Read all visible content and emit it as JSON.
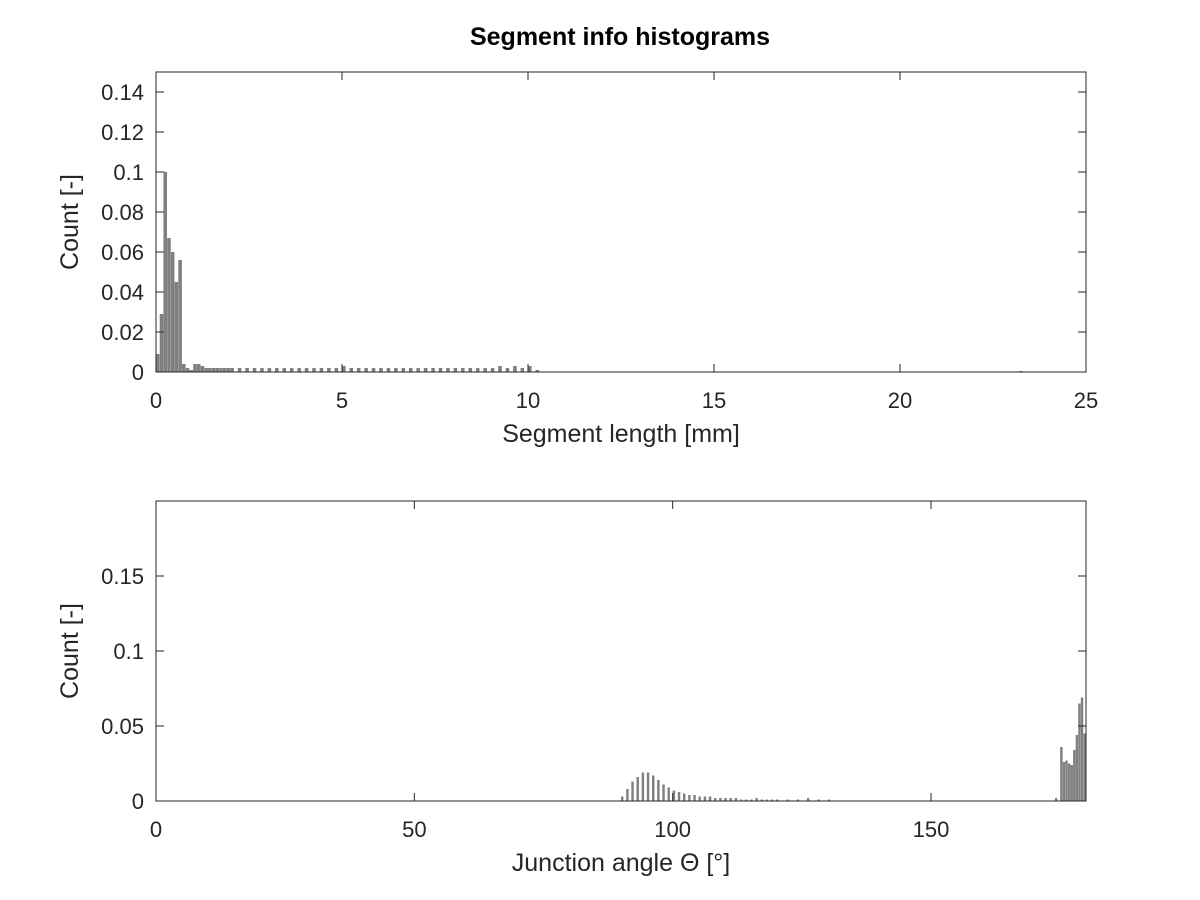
{
  "figure": {
    "title": "Segment info histograms"
  },
  "colors": {
    "bar": "#808080",
    "axes": "#262626",
    "background": "#ffffff"
  },
  "chart_data": [
    {
      "type": "bar",
      "xlabel": "Segment length [mm]",
      "ylabel": "Count [-]",
      "xlim": [
        0,
        25
      ],
      "ylim": [
        0,
        0.15
      ],
      "xticks": [
        "0",
        "5",
        "10",
        "15",
        "20",
        "25"
      ],
      "yticks": [
        "0",
        "0.02",
        "0.04",
        "0.06",
        "0.08",
        "0.1",
        "0.12",
        "0.14"
      ],
      "grid": false,
      "bin_width": 0.1,
      "x": [
        0.0,
        0.1,
        0.2,
        0.3,
        0.4,
        0.5,
        0.6,
        0.7,
        0.8,
        0.9,
        1.0,
        1.1,
        1.2,
        1.3,
        1.4,
        1.5,
        1.6,
        1.7,
        1.8,
        1.9,
        2.0,
        2.2,
        2.4,
        2.6,
        2.8,
        3.0,
        3.2,
        3.4,
        3.6,
        3.8,
        4.0,
        4.2,
        4.4,
        4.6,
        4.8,
        5.0,
        5.2,
        5.4,
        5.6,
        5.8,
        6.0,
        6.2,
        6.4,
        6.6,
        6.8,
        7.0,
        7.2,
        7.4,
        7.6,
        7.8,
        8.0,
        8.2,
        8.4,
        8.6,
        8.8,
        9.0,
        9.2,
        9.4,
        9.6,
        9.8,
        10.0,
        10.2,
        23.2
      ],
      "values": [
        0.009,
        0.029,
        0.1,
        0.067,
        0.06,
        0.045,
        0.056,
        0.004,
        0.002,
        0.001,
        0.004,
        0.004,
        0.003,
        0.002,
        0.002,
        0.002,
        0.002,
        0.002,
        0.002,
        0.002,
        0.002,
        0.002,
        0.002,
        0.002,
        0.002,
        0.002,
        0.002,
        0.002,
        0.002,
        0.002,
        0.002,
        0.002,
        0.002,
        0.002,
        0.002,
        0.003,
        0.002,
        0.002,
        0.002,
        0.002,
        0.002,
        0.002,
        0.002,
        0.002,
        0.002,
        0.002,
        0.002,
        0.002,
        0.002,
        0.002,
        0.002,
        0.002,
        0.002,
        0.002,
        0.002,
        0.002,
        0.003,
        0.002,
        0.003,
        0.002,
        0.003,
        0.001,
        0.0005
      ]
    },
    {
      "type": "bar",
      "xlabel": "Junction angle Θ [°]",
      "ylabel": "Count [-]",
      "xlim": [
        0,
        180
      ],
      "ylim": [
        0,
        0.2
      ],
      "xticks": [
        "0",
        "50",
        "100",
        "150"
      ],
      "yticks": [
        "0",
        "0.05",
        "0.1",
        "0.15"
      ],
      "grid": false,
      "bin_width": 0.5,
      "x": [
        90,
        91,
        92,
        93,
        94,
        95,
        96,
        97,
        98,
        99,
        100,
        101,
        102,
        103,
        104,
        105,
        106,
        107,
        108,
        109,
        110,
        111,
        112,
        113,
        114,
        115,
        116,
        117,
        118,
        119,
        120,
        122,
        124,
        126,
        128,
        130,
        174,
        175,
        175.5,
        176,
        176.5,
        177,
        177.5,
        178,
        178.5,
        179,
        179.5
      ],
      "values": [
        0.003,
        0.008,
        0.013,
        0.016,
        0.019,
        0.019,
        0.017,
        0.014,
        0.011,
        0.009,
        0.007,
        0.006,
        0.005,
        0.004,
        0.004,
        0.003,
        0.003,
        0.003,
        0.002,
        0.002,
        0.002,
        0.002,
        0.002,
        0.001,
        0.001,
        0.001,
        0.002,
        0.001,
        0.001,
        0.001,
        0.001,
        0.001,
        0.001,
        0.002,
        0.001,
        0.001,
        0.002,
        0.036,
        0.026,
        0.027,
        0.025,
        0.024,
        0.034,
        0.044,
        0.065,
        0.069,
        0.045
      ]
    }
  ]
}
